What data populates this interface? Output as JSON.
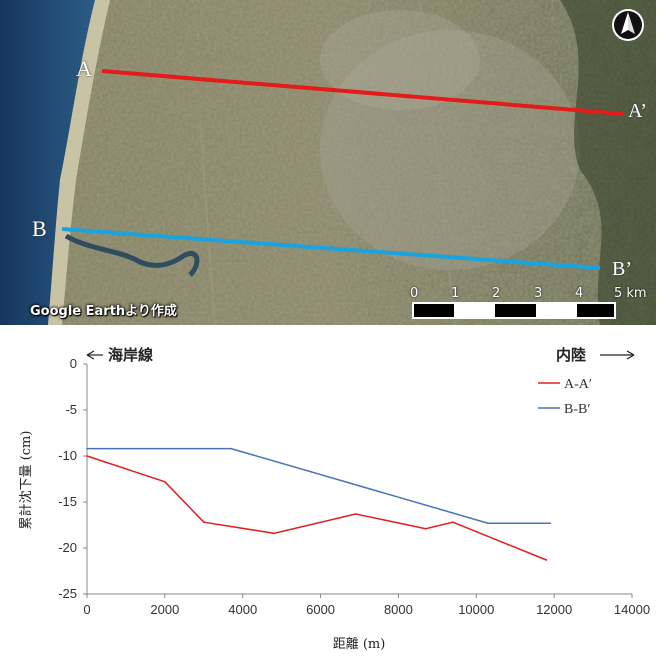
{
  "map": {
    "credit": "Google Earthより作成",
    "profile_a_start": "A",
    "profile_a_end": "A’",
    "profile_b_start": "B",
    "profile_b_end": "B’",
    "line_a_color": "#e31b1b",
    "line_b_color": "#19a3e0",
    "scale_ticks": [
      "0",
      "1",
      "2",
      "3",
      "4",
      "5 km"
    ],
    "north_icon": "north-arrow-icon"
  },
  "chart_data": {
    "type": "line",
    "ylabel": "累計沈下量 (cm)",
    "xlabel": "距離 (m)",
    "xlim": [
      0,
      14000
    ],
    "ylim": [
      -25,
      0
    ],
    "x_ticks": [
      "0",
      "2000",
      "4000",
      "6000",
      "8000",
      "10000",
      "12000",
      "14000"
    ],
    "y_ticks": [
      "0",
      "-5",
      "-10",
      "-15",
      "-20",
      "-25"
    ],
    "legend_position": "top-right",
    "direction_left": "海岸線",
    "direction_right": "内陸",
    "series": [
      {
        "name": "A-A′",
        "color": "#e02020",
        "points": [
          [
            0,
            -10.0
          ],
          [
            2000,
            -12.8
          ],
          [
            3000,
            -17.2
          ],
          [
            4800,
            -18.4
          ],
          [
            6900,
            -16.3
          ],
          [
            8700,
            -17.9
          ],
          [
            9400,
            -17.2
          ],
          [
            11800,
            -21.3
          ]
        ]
      },
      {
        "name": "B-B′",
        "color": "#4a72b8",
        "points": [
          [
            0,
            -9.2
          ],
          [
            3700,
            -9.2
          ],
          [
            10300,
            -17.3
          ],
          [
            11900,
            -17.3
          ]
        ]
      }
    ]
  }
}
